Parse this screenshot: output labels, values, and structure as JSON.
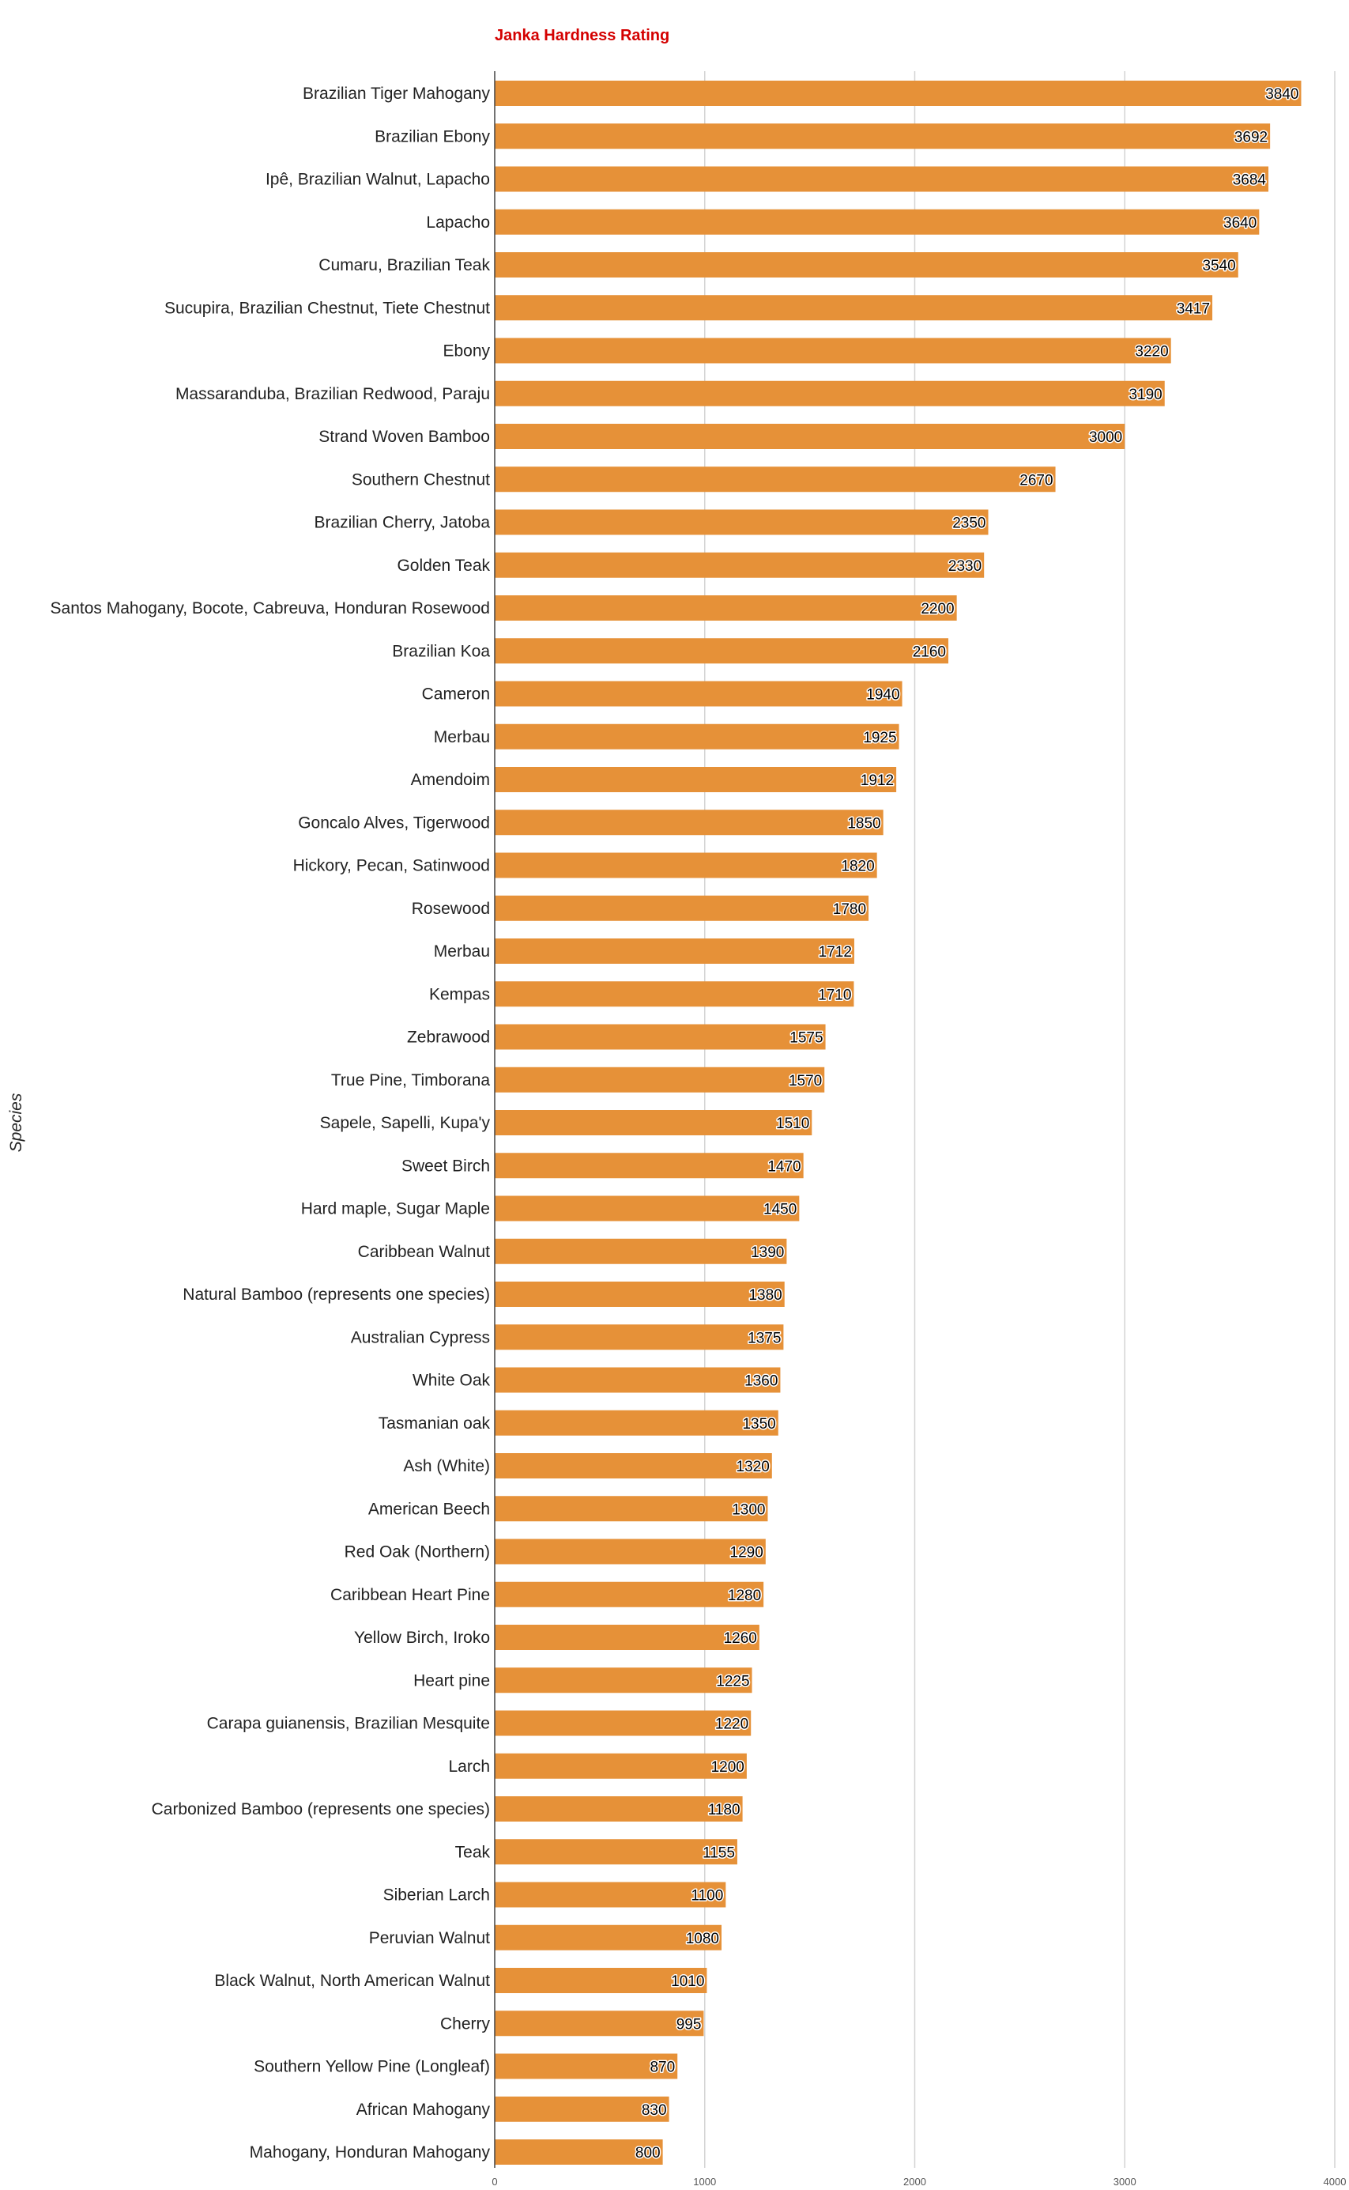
{
  "chart_data": {
    "type": "bar",
    "orientation": "horizontal",
    "title": "Janka Hardness Rating",
    "xlabel": "",
    "ylabel": "Species",
    "xlim": [
      0,
      4000
    ],
    "xticks": [
      0,
      1000,
      2000,
      3000,
      4000
    ],
    "grid": true,
    "legend": "none",
    "colors": {
      "bar": "#E69138",
      "title": "#D40000",
      "grid": "#D3D3D3",
      "axis": "#444444"
    },
    "categories": [
      "Brazilian Tiger Mahogany",
      "Brazilian Ebony",
      "Ipê, Brazilian Walnut, Lapacho",
      "Lapacho",
      "Cumaru, Brazilian Teak",
      "Sucupira, Brazilian Chestnut, Tiete Chestnut",
      "Ebony",
      "Massaranduba, Brazilian Redwood, Paraju",
      "Strand Woven Bamboo",
      "Southern Chestnut",
      "Brazilian Cherry, Jatoba",
      "Golden Teak",
      "Santos Mahogany, Bocote, Cabreuva, Honduran Rosewood",
      "Brazilian Koa",
      "Cameron",
      "Merbau",
      "Amendoim",
      "Goncalo Alves, Tigerwood",
      "Hickory, Pecan, Satinwood",
      "Rosewood",
      "Merbau",
      "Kempas",
      "Zebrawood",
      "True Pine, Timborana",
      "Sapele, Sapelli, Kupa'y",
      "Sweet Birch",
      "Hard maple, Sugar Maple",
      "Caribbean Walnut",
      "Natural Bamboo (represents one species)",
      "Australian Cypress",
      "White Oak",
      "Tasmanian oak",
      "Ash (White)",
      "American Beech",
      "Red Oak (Northern)",
      "Caribbean Heart Pine",
      "Yellow Birch, Iroko",
      "Heart pine",
      "Carapa guianensis, Brazilian Mesquite",
      "Larch",
      "Carbonized Bamboo (represents one species)",
      "Teak",
      "Siberian Larch",
      "Peruvian Walnut",
      "Black Walnut, North American Walnut",
      "Cherry",
      "Southern Yellow Pine (Longleaf)",
      "African Mahogany",
      "Mahogany, Honduran Mahogany"
    ],
    "values": [
      3840,
      3692,
      3684,
      3640,
      3540,
      3417,
      3220,
      3190,
      3000,
      2670,
      2350,
      2330,
      2200,
      2160,
      1940,
      1925,
      1912,
      1850,
      1820,
      1780,
      1712,
      1710,
      1575,
      1570,
      1510,
      1470,
      1450,
      1390,
      1380,
      1375,
      1360,
      1350,
      1320,
      1300,
      1290,
      1280,
      1260,
      1225,
      1220,
      1200,
      1180,
      1155,
      1100,
      1080,
      1010,
      995,
      870,
      830,
      800
    ]
  }
}
